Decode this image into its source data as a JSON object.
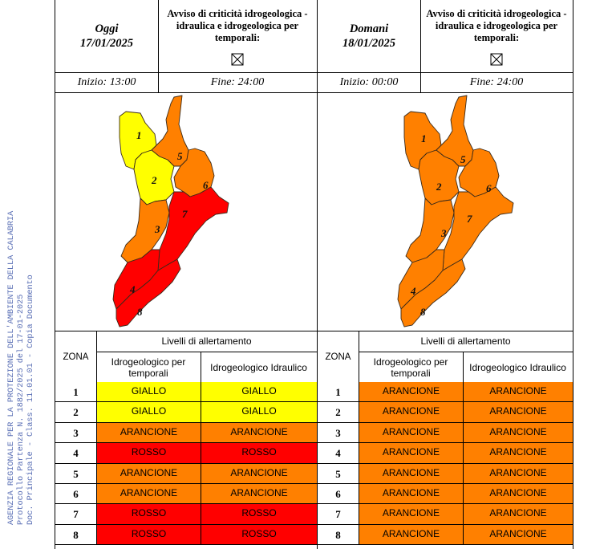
{
  "stamp": {
    "line1": "AGENZIA REGIONALE PER LA PROTEZIONE DELL'AMBIENTE DELLA CALABRIA",
    "line2": "Protocollo Partenza N. 1882/2025 del 17-01-2025",
    "line3": "Doc. Principale - Class. 11.01.01 - Copia Documento"
  },
  "colors": {
    "yellow": "#ffff00",
    "orange": "#ff8000",
    "red": "#ff0000",
    "stamp_text": "#5a6fb5"
  },
  "today": {
    "day_label": "Oggi",
    "date": "17/01/2025",
    "warning_title": "Avviso di criticità idrogeologica - idraulica e idrogeologica per temporali:",
    "start": "Inizio: 13:00",
    "end": "Fine: 24:00",
    "zone_numbers": [
      "1",
      "2",
      "3",
      "4",
      "5",
      "6",
      "7",
      "8"
    ],
    "zone_colors": [
      "#ffff00",
      "#ffff00",
      "#ff8000",
      "#ff0000",
      "#ff8000",
      "#ff8000",
      "#ff0000",
      "#ff0000"
    ]
  },
  "tomorrow": {
    "day_label": "Domani",
    "date": "18/01/2025",
    "warning_title": "Avviso di criticità idrogeologica - idraulica e idrogeologica per temporali:",
    "start": "Inizio: 00:00",
    "end": "Fine: 24:00",
    "zone_numbers": [
      "1",
      "2",
      "3",
      "4",
      "5",
      "6",
      "7",
      "8"
    ],
    "zone_colors": [
      "#ff8000",
      "#ff8000",
      "#ff8000",
      "#ff8000",
      "#ff8000",
      "#ff8000",
      "#ff8000",
      "#ff8000"
    ]
  },
  "table_header": {
    "zona": "ZONA",
    "levels": "Livelli di allertamento",
    "col1": "Idrogeologico per temporali",
    "col2": "Idrogeologico Idraulico"
  },
  "today_rows": [
    {
      "zone": "1",
      "temporali": "GIALLO",
      "idraulico": "GIALLO",
      "color": "#ffff00"
    },
    {
      "zone": "2",
      "temporali": "GIALLO",
      "idraulico": "GIALLO",
      "color": "#ffff00"
    },
    {
      "zone": "3",
      "temporali": "ARANCIONE",
      "idraulico": "ARANCIONE",
      "color": "#ff8000"
    },
    {
      "zone": "4",
      "temporali": "ROSSO",
      "idraulico": "ROSSO",
      "color": "#ff0000"
    },
    {
      "zone": "5",
      "temporali": "ARANCIONE",
      "idraulico": "ARANCIONE",
      "color": "#ff8000"
    },
    {
      "zone": "6",
      "temporali": "ARANCIONE",
      "idraulico": "ARANCIONE",
      "color": "#ff8000"
    },
    {
      "zone": "7",
      "temporali": "ROSSO",
      "idraulico": "ROSSO",
      "color": "#ff0000"
    },
    {
      "zone": "8",
      "temporali": "ROSSO",
      "idraulico": "ROSSO",
      "color": "#ff0000"
    }
  ],
  "tomorrow_rows": [
    {
      "zone": "1",
      "temporali": "ARANCIONE",
      "idraulico": "ARANCIONE",
      "color": "#ff8000"
    },
    {
      "zone": "2",
      "temporali": "ARANCIONE",
      "idraulico": "ARANCIONE",
      "color": "#ff8000"
    },
    {
      "zone": "3",
      "temporali": "ARANCIONE",
      "idraulico": "ARANCIONE",
      "color": "#ff8000"
    },
    {
      "zone": "4",
      "temporali": "ARANCIONE",
      "idraulico": "ARANCIONE",
      "color": "#ff8000"
    },
    {
      "zone": "5",
      "temporali": "ARANCIONE",
      "idraulico": "ARANCIONE",
      "color": "#ff8000"
    },
    {
      "zone": "6",
      "temporali": "ARANCIONE",
      "idraulico": "ARANCIONE",
      "color": "#ff8000"
    },
    {
      "zone": "7",
      "temporali": "ARANCIONE",
      "idraulico": "ARANCIONE",
      "color": "#ff8000"
    },
    {
      "zone": "8",
      "temporali": "ARANCIONE",
      "idraulico": "ARANCIONE",
      "color": "#ff8000"
    }
  ]
}
